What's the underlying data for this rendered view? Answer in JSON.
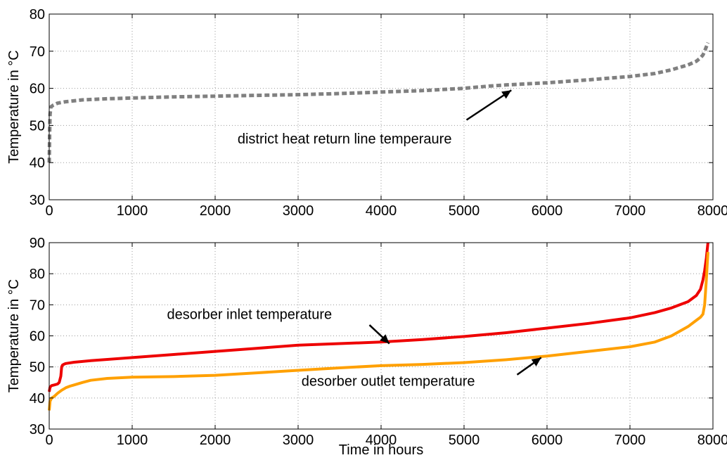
{
  "chart_data": [
    {
      "type": "line",
      "ylabel": "Temperature in °C",
      "xlabel": "",
      "xlim": [
        0,
        8000
      ],
      "ylim": [
        30,
        80
      ],
      "xticks": [
        0,
        1000,
        2000,
        3000,
        4000,
        5000,
        6000,
        7000,
        8000
      ],
      "yticks": [
        30,
        40,
        50,
        60,
        70,
        80
      ],
      "grid": true,
      "series": [
        {
          "name": "district heat return line temperaure",
          "color": "#808080",
          "style": "dashed",
          "x": [
            0,
            5,
            10,
            20,
            50,
            100,
            200,
            400,
            700,
            1000,
            1500,
            2000,
            2500,
            3000,
            3500,
            4000,
            4500,
            5000,
            5300,
            5500,
            6000,
            6500,
            7000,
            7300,
            7500,
            7700,
            7800,
            7850,
            7880,
            7900,
            7920,
            7940
          ],
          "y": [
            40,
            48,
            53,
            55,
            55.5,
            56,
            56.4,
            56.9,
            57.2,
            57.4,
            57.7,
            57.9,
            58.1,
            58.3,
            58.6,
            59.0,
            59.4,
            60.0,
            60.6,
            60.9,
            61.5,
            62.3,
            63.2,
            64.0,
            65.0,
            66.3,
            67.3,
            68.2,
            69.0,
            70.0,
            71.2,
            72.3
          ]
        }
      ],
      "annotations": [
        {
          "text": "district heat return line temperaure",
          "x": 2270,
          "y": 46.5,
          "arrow_from": [
            5030,
            51.5
          ],
          "arrow_to": [
            5570,
            59.5
          ]
        }
      ]
    },
    {
      "type": "line",
      "ylabel": "Temperature in °C",
      "xlabel": "Time in hours",
      "xlim": [
        0,
        8000
      ],
      "ylim": [
        30,
        90
      ],
      "xticks": [
        0,
        1000,
        2000,
        3000,
        4000,
        5000,
        6000,
        7000,
        8000
      ],
      "yticks": [
        30,
        40,
        50,
        60,
        70,
        80,
        90
      ],
      "grid": true,
      "series": [
        {
          "name": "desorber inlet temperature",
          "color": "#ee0000",
          "style": "solid",
          "x": [
            0,
            10,
            30,
            60,
            100,
            120,
            140,
            150,
            160,
            180,
            200,
            300,
            500,
            1000,
            1500,
            2000,
            2500,
            3000,
            3500,
            4000,
            4500,
            5000,
            5500,
            6000,
            6500,
            7000,
            7300,
            7500,
            7700,
            7800,
            7850,
            7880,
            7900,
            7920,
            7940
          ],
          "y": [
            42,
            43.5,
            44,
            44.2,
            44.5,
            45,
            47,
            50,
            50.6,
            50.9,
            51.1,
            51.5,
            52,
            53,
            54,
            55,
            56,
            57,
            57.5,
            58,
            58.8,
            59.8,
            61,
            62.5,
            64,
            65.8,
            67.5,
            69,
            71,
            73,
            75,
            78,
            81,
            85,
            90
          ]
        },
        {
          "name": "desorber outlet temperature",
          "color": "#ffa000",
          "style": "solid",
          "x": [
            0,
            10,
            30,
            60,
            100,
            150,
            200,
            250,
            300,
            400,
            500,
            700,
            1000,
            1500,
            2000,
            2500,
            3000,
            3500,
            4000,
            4500,
            5000,
            5500,
            6000,
            6500,
            7000,
            7300,
            7500,
            7700,
            7800,
            7850,
            7880,
            7900,
            7920,
            7940
          ],
          "y": [
            36,
            39,
            40,
            40.5,
            41.5,
            42.5,
            43.3,
            43.8,
            44.2,
            45,
            45.7,
            46.3,
            46.7,
            46.9,
            47.3,
            48.1,
            48.9,
            49.7,
            50.4,
            50.8,
            51.4,
            52.3,
            53.5,
            55,
            56.5,
            58,
            60,
            63,
            65,
            66,
            67,
            70,
            78,
            87
          ]
        }
      ],
      "annotations": [
        {
          "text": "desorber inlet temperature",
          "x": 1420,
          "y": 67,
          "arrow_from": [
            3860,
            63.5
          ],
          "arrow_to": [
            4100,
            57.5
          ]
        },
        {
          "text": "desorber outlet temperature",
          "x": 3040,
          "y": 45.5,
          "arrow_from": [
            5640,
            47.5
          ],
          "arrow_to": [
            5930,
            53
          ]
        }
      ]
    }
  ]
}
